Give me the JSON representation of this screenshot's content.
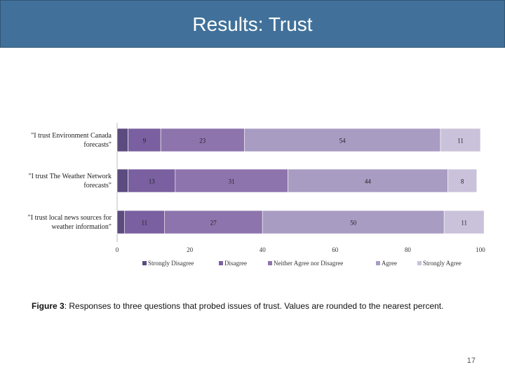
{
  "slide": {
    "title": "Results: Trust",
    "caption_label": "Figure 3",
    "caption_text": ": Responses to three questions that probed issues of trust.  Values are rounded to the nearest percent.",
    "page_number": "17"
  },
  "colors": {
    "title_bar": "#41719a",
    "series": [
      "#5b4b7e",
      "#7a60a0",
      "#8e74ad",
      "#a99cc3",
      "#cac2da"
    ]
  },
  "chart_data": {
    "type": "bar",
    "orientation": "horizontal",
    "stacked": true,
    "categories": [
      [
        "\"I trust Environment Canada",
        "forecasts\""
      ],
      [
        "\"I trust The Weather Network",
        "forecasts\""
      ],
      [
        "\"I trust local news sources for",
        "weather information\""
      ]
    ],
    "series": [
      {
        "name": "Strongly Disagree",
        "values": [
          3,
          3,
          2
        ]
      },
      {
        "name": "Disagree",
        "values": [
          9,
          13,
          11
        ]
      },
      {
        "name": "Neither Agree nor Disagree",
        "values": [
          23,
          31,
          27
        ]
      },
      {
        "name": "Agree",
        "values": [
          54,
          44,
          50
        ]
      },
      {
        "name": "Strongly Agree",
        "values": [
          11,
          8,
          11
        ]
      }
    ],
    "labels": [
      [
        "",
        "9",
        "23",
        "54",
        "11"
      ],
      [
        "",
        "13",
        "31",
        "44",
        "8"
      ],
      [
        "",
        "11",
        "27",
        "50",
        "11"
      ]
    ],
    "xlim": [
      0,
      100
    ],
    "xticks": [
      0,
      20,
      40,
      60,
      80,
      100
    ],
    "legend": "bottom"
  }
}
